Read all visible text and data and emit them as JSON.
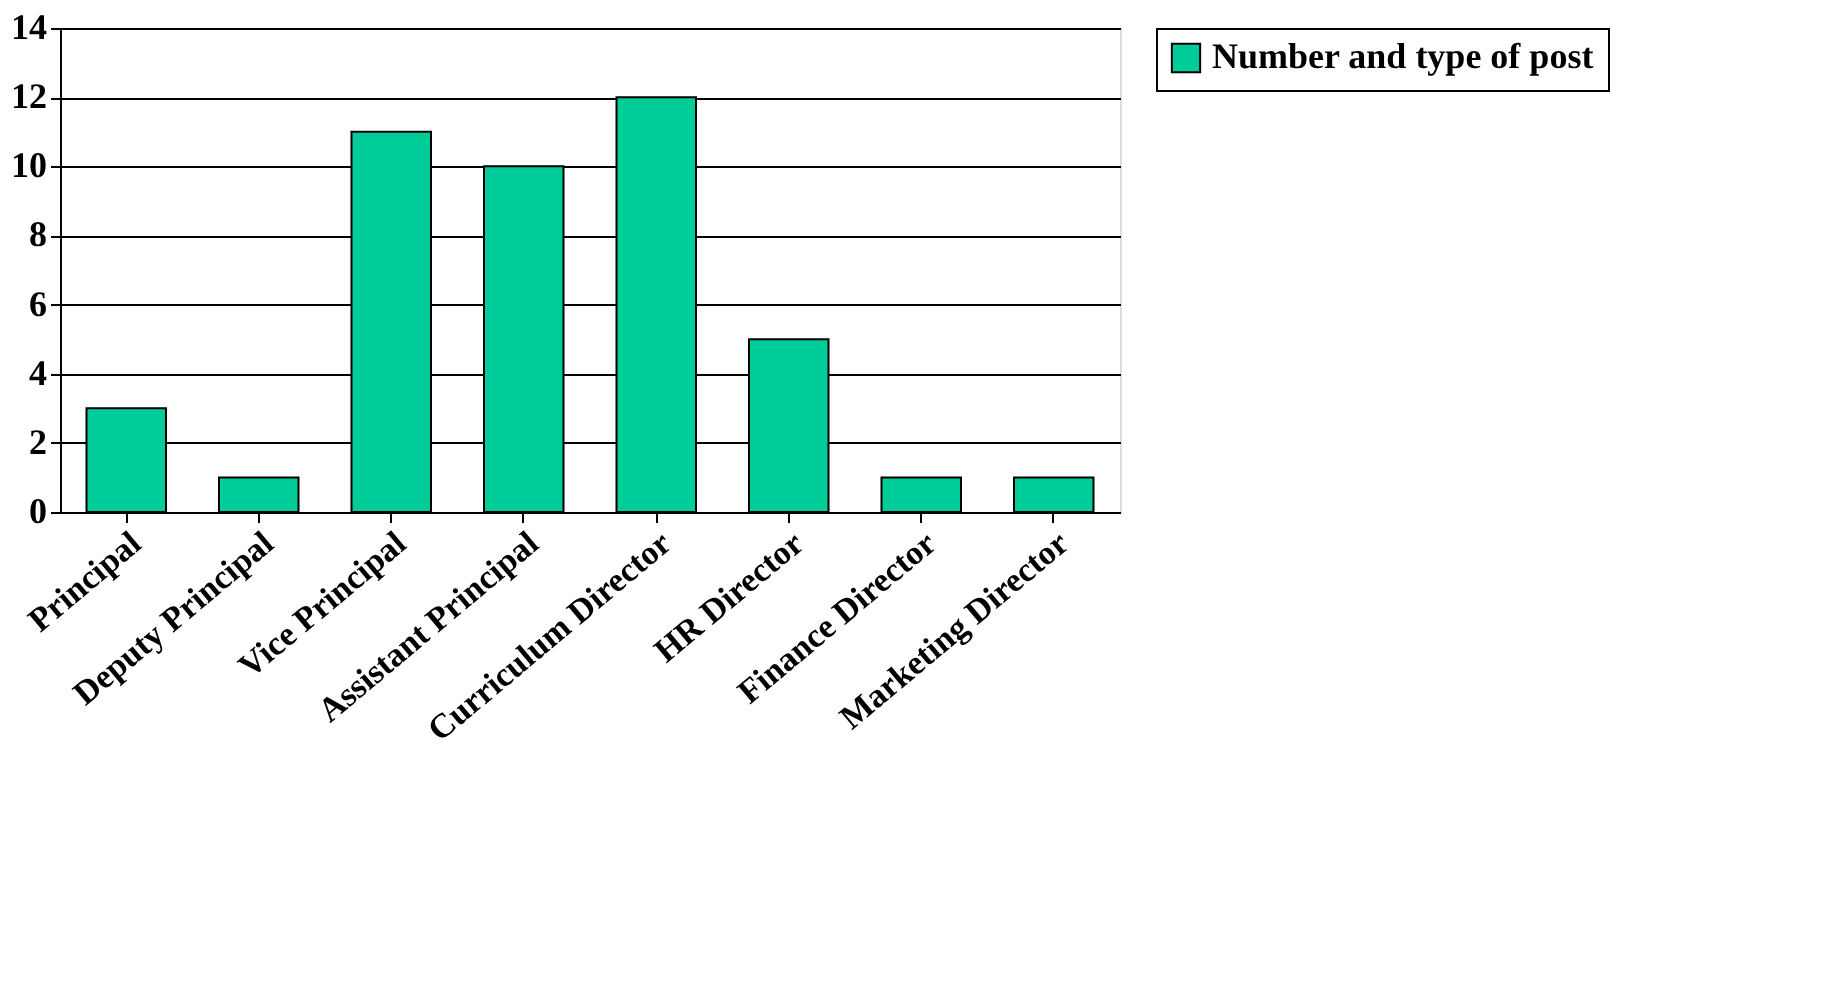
{
  "chart_data": {
    "type": "bar",
    "categories": [
      "Principal",
      "Deputy Principal",
      "Vice Principal",
      "Assistant Principal",
      "Curriculum Director",
      "HR Director",
      "Finance Director",
      "Marketing Director"
    ],
    "series": [
      {
        "name": "Number and type of post",
        "color": "#00cc99",
        "values": [
          3,
          1,
          11,
          10,
          12,
          5,
          1,
          1
        ]
      }
    ],
    "ylim": [
      0,
      14
    ],
    "yticks": [
      0,
      2,
      4,
      6,
      8,
      10,
      12,
      14
    ],
    "grid": "y",
    "legend": "right"
  }
}
